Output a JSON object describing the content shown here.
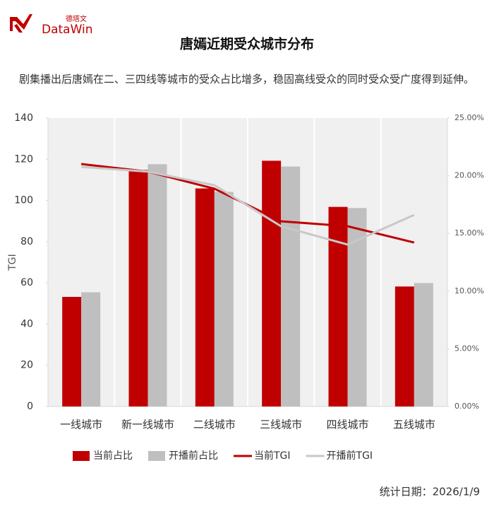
{
  "header": {
    "logo_text": "DataWin",
    "logo_cn": "德塔文"
  },
  "chart_data": {
    "type": "bar_line",
    "title": "唐嫣近期受众城市分布",
    "subtitle": "剧集播出后唐嫣在二、三四线等城市的受众占比增多，稳固高线受众的同时受众受广度得到延伸。",
    "categories": [
      "一线城市",
      "新一线城市",
      "二线城市",
      "三线城市",
      "四线城市",
      "五线城市"
    ],
    "series": [
      {
        "name": "当前占比",
        "type": "bar",
        "axis": "y2",
        "color": "#c00000",
        "values": [
          9.5,
          20.5,
          18.9,
          21.3,
          17.3,
          10.4
        ]
      },
      {
        "name": "开播前占比",
        "type": "bar",
        "axis": "y2",
        "color": "#bfbfbf",
        "values": [
          9.9,
          21.0,
          18.6,
          20.8,
          17.2,
          10.7
        ]
      },
      {
        "name": "当前TGI",
        "type": "line",
        "color": "#c00000",
        "values": [
          117.7,
          114,
          105.7,
          89.9,
          87.5,
          79.6
        ]
      },
      {
        "name": "开播前TGI",
        "type": "line",
        "color": "#c8c8c8",
        "values": [
          116.3,
          114,
          107.4,
          87.5,
          78.6,
          93
        ]
      }
    ],
    "ylabel": "TGI",
    "ylim": [
      0,
      140
    ],
    "yticks": [
      0,
      20,
      40,
      60,
      80,
      100,
      120,
      140
    ],
    "y2lim": [
      0,
      25
    ],
    "y2ticks": [
      {
        "value": 0,
        "label": "0.00%"
      },
      {
        "value": 5,
        "label": "5.00%"
      },
      {
        "value": 10,
        "label": "10.00%"
      },
      {
        "value": 15,
        "label": "15.00%"
      },
      {
        "value": 20,
        "label": "20.00%"
      },
      {
        "value": 25,
        "label": "25.00%"
      }
    ],
    "note": "统计日期：2026/1/9"
  }
}
